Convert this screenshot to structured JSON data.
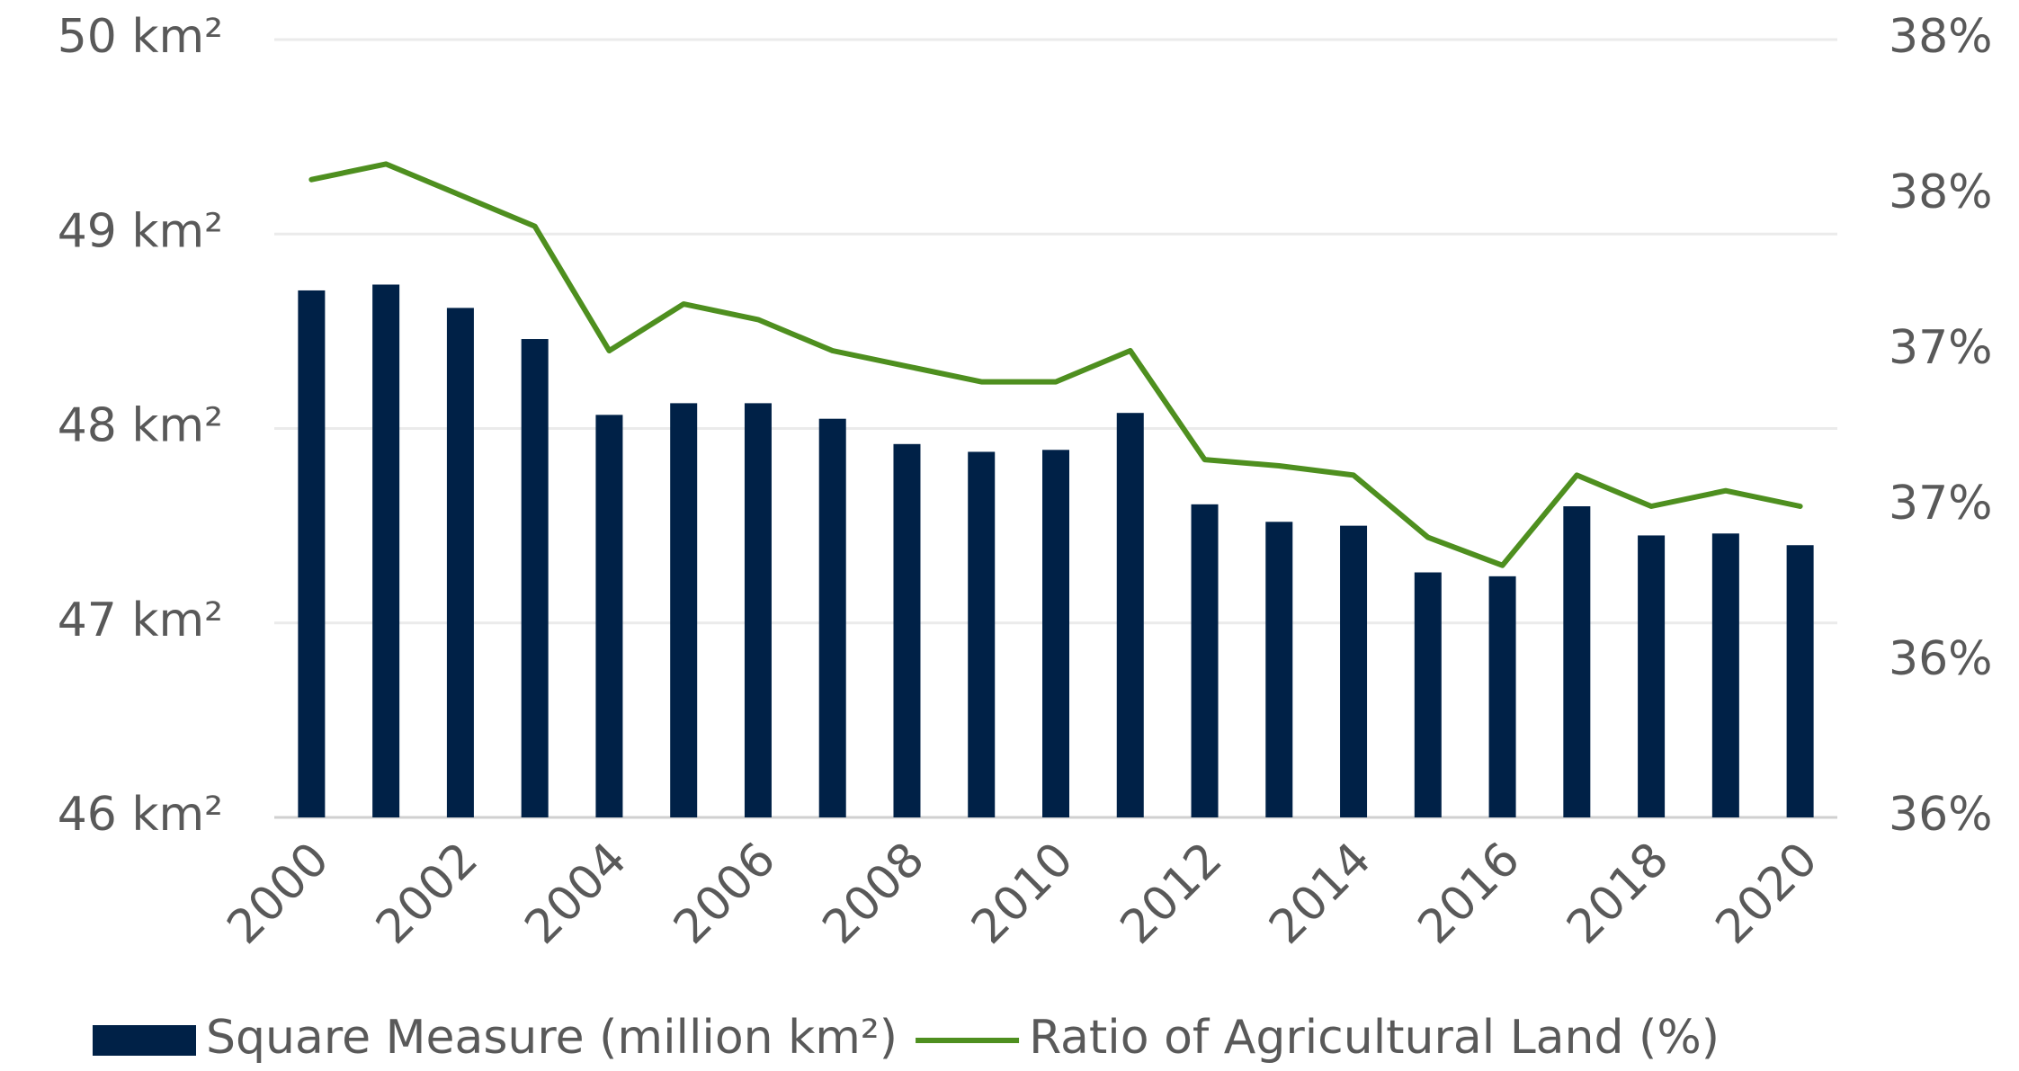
{
  "chart_data": {
    "type": "bar_line",
    "categories": [
      "2000",
      null,
      "2002",
      null,
      "2004",
      null,
      "2006",
      null,
      "2008",
      null,
      "2010",
      null,
      "2012",
      null,
      "2014",
      null,
      "2016",
      null,
      "2018",
      null,
      "2020"
    ],
    "series": [
      {
        "name": "Square Measure (million km²)",
        "type": "bar",
        "color": "#002147",
        "values": [
          48.71,
          48.74,
          48.62,
          48.46,
          48.07,
          48.13,
          48.13,
          48.05,
          47.92,
          47.88,
          47.89,
          48.08,
          47.61,
          47.52,
          47.5,
          47.26,
          47.24,
          47.6,
          47.45,
          47.46,
          47.4
        ]
      },
      {
        "name": "Ratio of Agricultural Land (%)",
        "type": "line",
        "color": "#4e8f1f",
        "axis": "y2",
        "values": [
          37.55,
          37.6,
          37.5,
          37.4,
          37.0,
          37.15,
          37.1,
          37.0,
          36.95,
          36.9,
          36.9,
          37.0,
          36.65,
          36.63,
          36.6,
          36.4,
          36.31,
          36.6,
          36.5,
          36.55,
          36.5
        ]
      }
    ],
    "ylim": [
      46,
      50
    ],
    "yticks": [
      {
        "value": 46,
        "label": "46 km²"
      },
      {
        "value": 47,
        "label": "47 km²"
      },
      {
        "value": 48,
        "label": "48 km²"
      },
      {
        "value": 49,
        "label": "49 km²"
      },
      {
        "value": 50,
        "label": "50 km²"
      }
    ],
    "y2lim": [
      35.5,
      38
    ],
    "y2ticks": [
      {
        "value": 35.5,
        "label": "36%"
      },
      {
        "value": 36,
        "label": "36%"
      },
      {
        "value": 36.5,
        "label": "37%"
      },
      {
        "value": 37,
        "label": "37%"
      },
      {
        "value": 37.5,
        "label": "38%"
      },
      {
        "value": 38,
        "label": "38%"
      }
    ],
    "grid": true,
    "legend": "bottom"
  }
}
